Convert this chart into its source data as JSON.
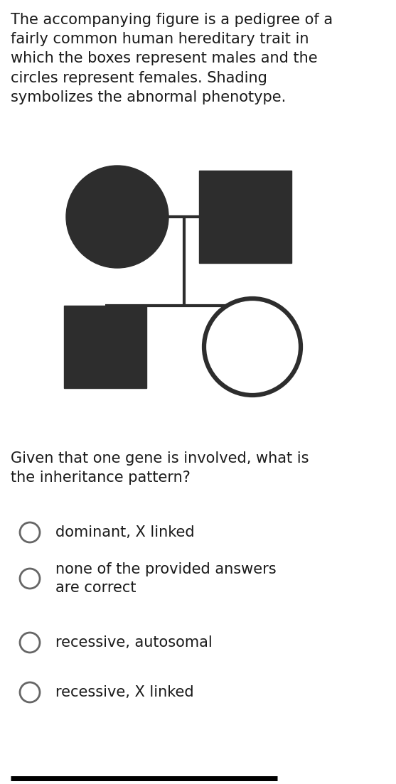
{
  "background_color": "#ffffff",
  "text_color": "#1a1a1a",
  "dark_fill": "#2d2d2d",
  "line_color": "#2d2d2d",
  "pedigree_text": "The accompanying figure is a pedigree of a\nfairly common human hereditary trait in\nwhich the boxes represent males and the\ncircles represent females. Shading\nsymbolizes the abnormal phenotype.",
  "question_text": "Given that one gene is involved, what is\nthe inheritance pattern?",
  "options": [
    "dominant, X linked",
    "none of the provided answers\nare correct",
    "recessive, autosomal",
    "recessive, X linked"
  ],
  "font_size_text": 15.0,
  "font_size_options": 15.0,
  "line_width": 3.0,
  "radio_edge_color": "#666666",
  "bottom_bar_color": "#000000",
  "fig_width": 5.57,
  "fig_height": 11.03,
  "dpi": 100
}
